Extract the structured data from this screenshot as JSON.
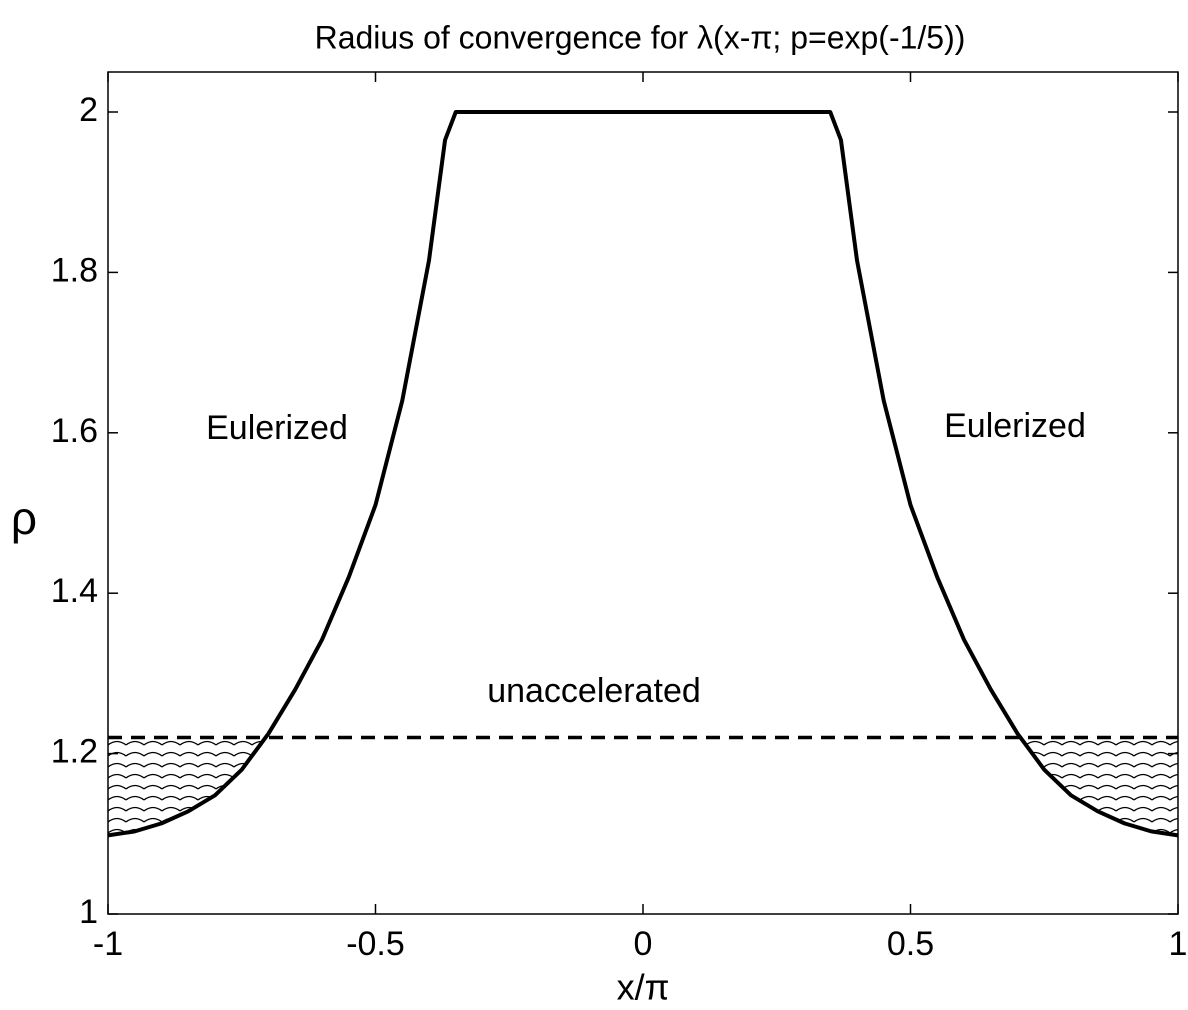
{
  "chart_data": {
    "type": "line",
    "title": "Radius of convergence for λ(x-π; p=exp(-1/5))",
    "x_label": "x/π",
    "y_label": "ρ",
    "x": [
      -1,
      -0.95,
      -0.9,
      -0.85,
      -0.8,
      -0.75,
      -0.7,
      -0.65,
      -0.6,
      -0.55,
      -0.5,
      -0.45,
      -0.4,
      -0.37,
      -0.35,
      0.35,
      0.37,
      0.4,
      0.45,
      0.5,
      0.55,
      0.6,
      0.65,
      0.7,
      0.75,
      0.8,
      0.85,
      0.9,
      0.95,
      1
    ],
    "series": [
      {
        "color": "#000000",
        "values": [
          1.098,
          1.103,
          1.113,
          1.128,
          1.148,
          1.18,
          1.225,
          1.28,
          1.342,
          1.42,
          1.51,
          1.64,
          1.815,
          1.965,
          2.0,
          2.0,
          1.965,
          1.815,
          1.64,
          1.51,
          1.42,
          1.342,
          1.28,
          1.225,
          1.18,
          1.148,
          1.128,
          1.113,
          1.103,
          1.098
        ]
      }
    ],
    "hline": 1.22,
    "annotations": [
      "Eulerized",
      "Eulerized",
      "unaccelerated"
    ],
    "xlim": [
      -1,
      1
    ],
    "xticks": [
      -1,
      -0.5,
      0,
      0.5,
      1
    ],
    "ylim": [
      1,
      2
    ],
    "yticks": [
      1,
      1.2,
      1.4,
      1.6,
      1.8,
      2
    ],
    "grid": false
  }
}
